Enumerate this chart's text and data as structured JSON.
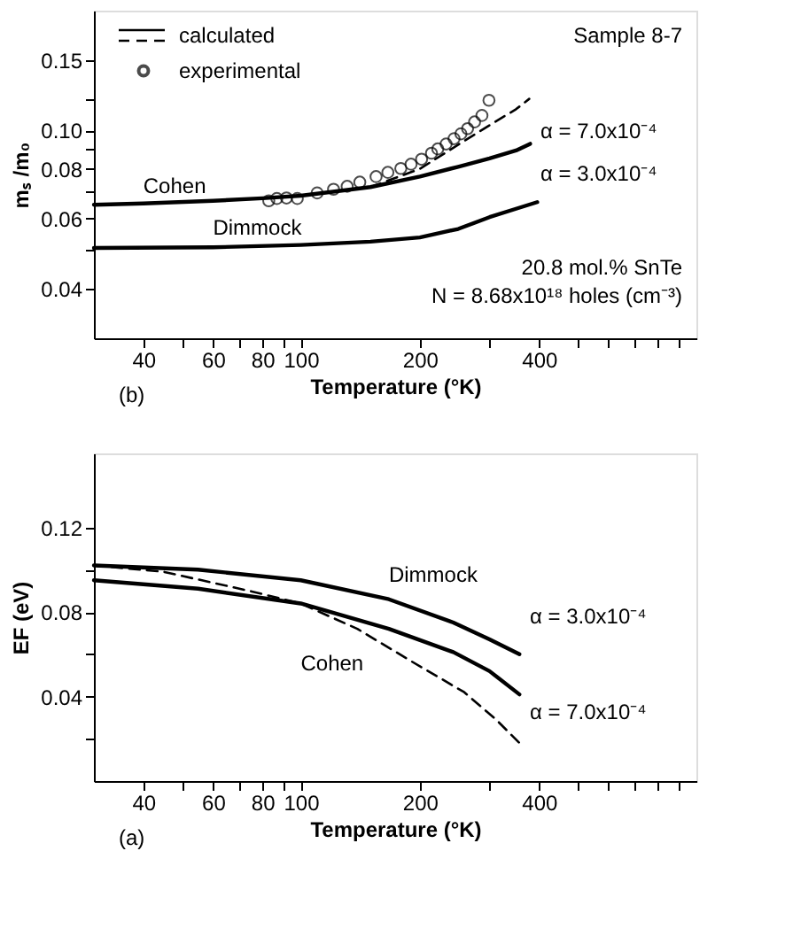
{
  "chart_data": [
    {
      "type": "line",
      "xlabel": "Temperature (°K)",
      "ylabel": "mₛ /m₀",
      "log": "xy",
      "legend": "top left",
      "grid": false,
      "xlim": [
        30,
        1000
      ],
      "xticks": [
        40,
        {
          "value": 50,
          "label": null
        },
        60,
        {
          "value": 70,
          "label": null
        },
        80,
        {
          "value": 90,
          "label": null
        },
        100,
        200,
        {
          "value": 300,
          "label": null
        },
        400,
        {
          "value": 500,
          "label": null
        },
        {
          "value": 600,
          "label": null
        },
        {
          "value": 700,
          "label": null
        },
        {
          "value": 800,
          "label": null
        },
        {
          "value": 900,
          "label": null
        }
      ],
      "ylim": [
        0.03,
        0.2
      ],
      "yticks": [
        0.04,
        {
          "value": 0.05,
          "label": null
        },
        0.06,
        {
          "value": 0.07,
          "label": null
        },
        0.08,
        {
          "value": 0.09,
          "label": null
        },
        {
          "value": 0.1,
          "label": "0.10"
        },
        {
          "value": 0.12,
          "label": null
        },
        0.15
      ],
      "series": [
        {
          "name": "experimental",
          "type": "scatter",
          "marker": "circle",
          "color": "#000000",
          "x": [
            83,
            87,
            92,
            98,
            110,
            121,
            131,
            141,
            155,
            166,
            179,
            190,
            202,
            214,
            222,
            233,
            244,
            254,
            264,
            275,
            287,
            299
          ],
          "values": [
            0.0665,
            0.0674,
            0.0676,
            0.0674,
            0.0696,
            0.0711,
            0.0723,
            0.0741,
            0.0765,
            0.0784,
            0.0802,
            0.0822,
            0.0846,
            0.0876,
            0.0898,
            0.0924,
            0.0953,
            0.098,
            0.101,
            0.105,
            0.109,
            0.119
          ]
        },
        {
          "name": "Cohen",
          "color": "#000000",
          "line_style": "solid",
          "x": [
            30,
            40,
            60,
            80,
            100,
            150,
            200,
            250,
            300,
            350,
            380
          ],
          "values": [
            0.065,
            0.0655,
            0.0665,
            0.0675,
            0.0685,
            0.072,
            0.0765,
            0.081,
            0.085,
            0.089,
            0.0925
          ]
        },
        {
          "color": "#000000",
          "line_style": "dashed",
          "x": [
            150,
            200,
            250,
            300,
            350,
            378
          ],
          "values": [
            0.072,
            0.08,
            0.092,
            0.103,
            0.113,
            0.12
          ]
        },
        {
          "name": "Dimmock",
          "color": "#000000",
          "line_style": "solid",
          "x": [
            30,
            60,
            100,
            150,
            200,
            250,
            300,
            350,
            396
          ],
          "values": [
            0.0506,
            0.0508,
            0.0515,
            0.0525,
            0.0538,
            0.0565,
            0.0605,
            0.0635,
            0.066
          ]
        }
      ],
      "annotations": [
        "calculated",
        "Sample 8-7",
        "20.8 mol.% SnTe",
        "N = 8.68x10¹⁸ holes (cm⁻³)",
        "(b)",
        "α = 7.0x10⁻⁴",
        "α = 3.0x10⁻⁴"
      ]
    },
    {
      "type": "line",
      "xlabel": "Temperature (°K)",
      "ylabel": "EF (eV)",
      "log": "x",
      "grid": false,
      "xlim": [
        30,
        1000
      ],
      "xticks": [
        40,
        {
          "value": 50,
          "label": null
        },
        60,
        {
          "value": 70,
          "label": null
        },
        80,
        {
          "value": 90,
          "label": null
        },
        100,
        200,
        {
          "value": 300,
          "label": null
        },
        400,
        {
          "value": 500,
          "label": null
        },
        {
          "value": 600,
          "label": null
        },
        {
          "value": 700,
          "label": null
        },
        {
          "value": 800,
          "label": null
        },
        {
          "value": 900,
          "label": null
        }
      ],
      "ylim": [
        0,
        0.155
      ],
      "yticks": [
        {
          "value": 0.02,
          "label": null
        },
        0.04,
        {
          "value": 0.06,
          "label": null
        },
        0.08,
        {
          "value": 0.1,
          "label": null
        },
        0.12
      ],
      "series": [
        {
          "name": "Dimmock",
          "color": "#000000",
          "line_style": "solid",
          "x": [
            30,
            55,
            100,
            167,
            243,
            300,
            357
          ],
          "values": [
            0.102,
            0.1,
            0.095,
            0.086,
            0.075,
            0.067,
            0.06
          ]
        },
        {
          "name": "Cohen",
          "color": "#000000",
          "line_style": "solid",
          "x": [
            30,
            55,
            100,
            167,
            243,
            300,
            357
          ],
          "values": [
            0.095,
            0.091,
            0.084,
            0.072,
            0.061,
            0.052,
            0.041
          ]
        },
        {
          "color": "#000000",
          "line_style": "dashed",
          "x": [
            30,
            45,
            74,
            100,
            139,
            189,
            259,
            312,
            357
          ],
          "values": [
            0.102,
            0.099,
            0.09,
            0.084,
            0.072,
            0.057,
            0.042,
            0.029,
            0.018
          ]
        }
      ],
      "annotations": [
        "(a)",
        "α = 3.0x10⁻⁴",
        "α = 7.0x10⁻⁴"
      ]
    }
  ]
}
